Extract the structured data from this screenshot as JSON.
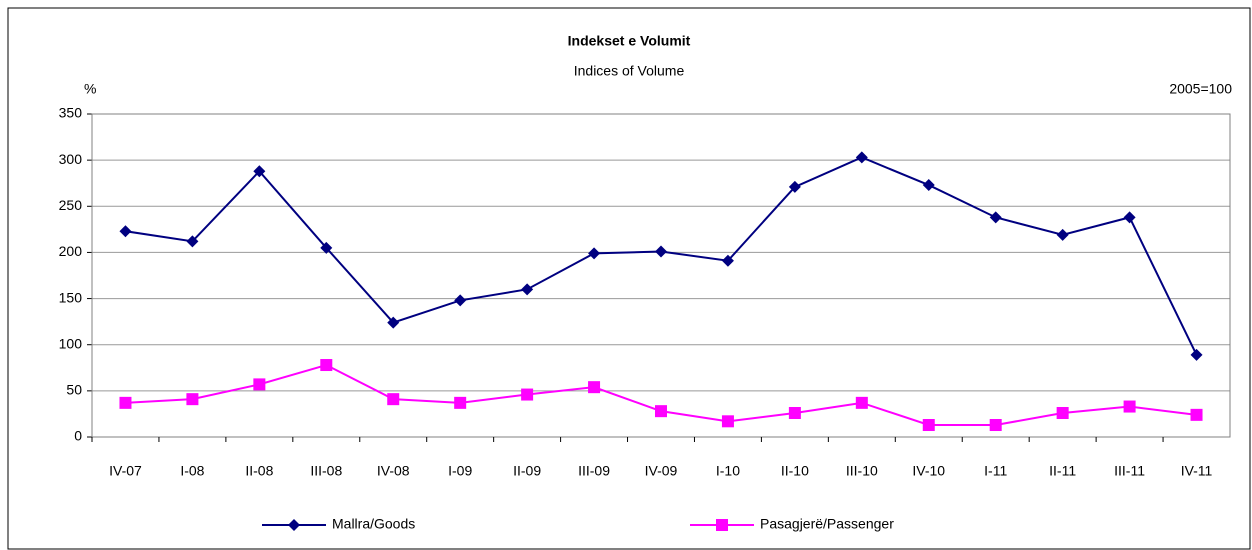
{
  "chart_data": {
    "type": "line",
    "title": "Indekset e Volumit",
    "subtitle": "Indices of Volume",
    "y_label": "%",
    "annotation": "2005=100",
    "categories": [
      "IV-07",
      "I-08",
      "II-08",
      "III-08",
      "IV-08",
      "I-09",
      "II-09",
      "III-09",
      "IV-09",
      "I-10",
      "II-10",
      "III-10",
      "IV-10",
      "I-11",
      "II-11",
      "III-11",
      "IV-11"
    ],
    "series": [
      {
        "name": "Mallra/Goods",
        "color": "#000080",
        "marker": "diamond",
        "values": [
          223,
          212,
          288,
          205,
          124,
          148,
          160,
          199,
          201,
          191,
          271,
          303,
          273,
          238,
          219,
          238,
          89
        ]
      },
      {
        "name": "Pasagjerë/Passenger",
        "color": "#ff00ff",
        "marker": "square",
        "values": [
          37,
          41,
          57,
          78,
          41,
          37,
          46,
          54,
          28,
          17,
          26,
          37,
          13,
          13,
          26,
          33,
          24
        ]
      }
    ],
    "ylim": [
      0,
      350
    ],
    "yticks": [
      0,
      50,
      100,
      150,
      200,
      250,
      300,
      350
    ],
    "grid": true,
    "legend": "bottom"
  }
}
